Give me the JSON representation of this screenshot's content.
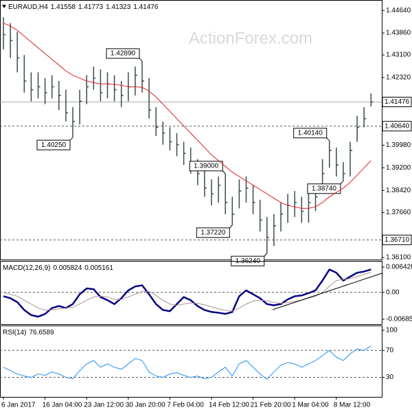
{
  "chart_data": [
    {
      "type": "ohlc",
      "title": "EURAUD,H4",
      "open": 1.41558,
      "categories": [
        "6 Jan 2017",
        null,
        null,
        null,
        null,
        null,
        "16 Jan 04:00",
        null,
        null,
        null,
        null,
        null,
        "23 Jan 12:00",
        null,
        null,
        null,
        null,
        null,
        "30 Jan 20:00",
        null,
        null,
        null,
        null,
        null,
        "7 Feb 04:00",
        null,
        null,
        null,
        null,
        null,
        "14 Feb 12:00",
        null,
        null,
        null,
        null,
        null,
        "21 Feb 20:00",
        null,
        null,
        null,
        null,
        null,
        "1 Mar 04:00",
        null,
        null,
        null,
        null,
        null,
        "8 Mar 12:00",
        null,
        null,
        null,
        null,
        null
      ],
      "high": [
        1.444,
        1.442,
        1.439,
        1.431,
        1.425,
        1.425,
        1.423,
        1.424,
        1.422,
        1.419,
        1.413,
        1.419,
        1.424,
        1.427,
        1.426,
        1.425,
        1.424,
        1.422,
        1.425,
        1.427,
        1.4289,
        1.423,
        1.413,
        1.408,
        1.406,
        1.404,
        1.401,
        1.399,
        1.395,
        1.391,
        1.388,
        1.389,
        1.39,
        1.382,
        1.388,
        1.389,
        1.386,
        1.381,
        1.375,
        1.376,
        1.38,
        1.383,
        1.384,
        1.382,
        1.384,
        1.386,
        1.395,
        1.4014,
        1.399,
        1.394,
        1.401,
        1.41,
        1.413,
        1.41773
      ],
      "low": [
        1.433,
        1.43,
        1.425,
        1.418,
        1.415,
        1.416,
        1.414,
        1.416,
        1.412,
        1.408,
        1.4025,
        1.407,
        1.414,
        1.419,
        1.415,
        1.416,
        1.415,
        1.413,
        1.415,
        1.417,
        1.418,
        1.409,
        1.403,
        1.4,
        1.398,
        1.396,
        1.393,
        1.39,
        1.386,
        1.382,
        1.379,
        1.38,
        1.376,
        1.3722,
        1.378,
        1.38,
        1.376,
        1.37,
        1.3624,
        1.365,
        1.37,
        1.373,
        1.375,
        1.373,
        1.373,
        1.377,
        1.384,
        1.392,
        1.389,
        1.3874,
        1.389,
        1.401,
        1.406,
        1.41323
      ],
      "close": [
        1.438,
        1.436,
        1.43,
        1.422,
        1.419,
        1.42,
        1.418,
        1.42,
        1.417,
        1.411,
        1.408,
        1.415,
        1.42,
        1.423,
        1.418,
        1.421,
        1.419,
        1.417,
        1.42,
        1.424,
        1.422,
        1.412,
        1.406,
        1.404,
        1.401,
        1.4,
        1.397,
        1.393,
        1.39,
        1.385,
        1.383,
        1.386,
        1.38,
        1.376,
        1.384,
        1.385,
        1.38,
        1.374,
        1.368,
        1.372,
        1.376,
        1.379,
        1.38,
        1.377,
        1.38,
        1.382,
        1.39,
        1.398,
        1.393,
        1.39,
        1.398,
        1.406,
        1.409,
        1.41476
      ],
      "bar_color": "#3a4a4a",
      "series": [
        {
          "color": "#e02020",
          "values": [
            1.442,
            1.441,
            1.4395,
            1.4375,
            1.4355,
            1.4335,
            1.4315,
            1.4295,
            1.4275,
            1.4255,
            1.424,
            1.423,
            1.422,
            1.4215,
            1.421,
            1.421,
            1.4208,
            1.4205,
            1.42,
            1.42,
            1.4198,
            1.4185,
            1.4165,
            1.414,
            1.4115,
            1.409,
            1.4065,
            1.404,
            1.4015,
            1.399,
            1.3965,
            1.3945,
            1.3925,
            1.3905,
            1.389,
            1.3875,
            1.386,
            1.3845,
            1.383,
            1.3815,
            1.38,
            1.379,
            1.3785,
            1.378,
            1.378,
            1.3785,
            1.38,
            1.382,
            1.3835,
            1.385,
            1.387,
            1.3895,
            1.392,
            1.3945
          ]
        }
      ],
      "ylim": [
        1.3603,
        1.45
      ],
      "yticks": [
        {
          "value": 1.4464,
          "label": "1.44640"
        },
        {
          "value": 1.4386,
          "label": "1.43860"
        },
        {
          "value": 1.431,
          "label": "1.43100"
        },
        {
          "value": 1.4232,
          "label": "1.42320"
        },
        {
          "value": 1.3998,
          "label": "1.39980"
        },
        {
          "value": 1.392,
          "label": "1.39200"
        },
        {
          "value": 1.3842,
          "label": "1.38420"
        },
        {
          "value": 1.3766,
          "label": "1.37660"
        },
        {
          "value": 1.361,
          "label": "1.36100"
        }
      ],
      "levels": [
        {
          "value": 1.4064,
          "label": "1.40640"
        },
        {
          "value": 1.3671,
          "label": "1.36710"
        }
      ],
      "annotations": [
        {
          "value": 1.4289,
          "label": "1.42890"
        },
        {
          "value": 1.4025,
          "label": "1.40250"
        },
        {
          "value": 1.39,
          "label": "1.39000"
        },
        {
          "value": 1.3722,
          "label": "1.37220"
        },
        {
          "value": 1.3624,
          "label": "1.36240"
        },
        {
          "value": 1.4014,
          "label": "1.40140"
        },
        {
          "value": 1.3874,
          "label": "1.38740"
        }
      ],
      "watermark": "ActionForex.com"
    },
    {
      "type": "line",
      "title": "MACD(12,26,9)",
      "series": [
        {
          "color": "#000080",
          "width": 2.5,
          "values": [
            -0.001,
            -0.0015,
            -0.0025,
            -0.0045,
            -0.0058,
            -0.0062,
            -0.0055,
            -0.004,
            -0.0035,
            -0.004,
            -0.003,
            -0.0005,
            0.001,
            0.0008,
            -0.0012,
            -0.002,
            -0.003,
            -0.0015,
            0.0005,
            0.0015,
            0.0018,
            -0.0005,
            -0.003,
            -0.0045,
            -0.0048,
            -0.003,
            -0.0012,
            -0.002,
            -0.0035,
            -0.0045,
            -0.005,
            -0.0052,
            -0.0055,
            -0.005,
            -0.001,
            0.0005,
            -0.0005,
            -0.0015,
            -0.003,
            -0.0033,
            -0.003,
            -0.0018,
            -0.001,
            -0.0008,
            -0.0002,
            0.0005,
            0.003,
            0.0058,
            0.005,
            0.003,
            0.004,
            0.005,
            0.0053,
            0.005824
          ]
        },
        {
          "color": "#b09090",
          "width": 1,
          "values": [
            0,
            -0.0005,
            -0.001,
            -0.002,
            -0.003,
            -0.004,
            -0.0045,
            -0.0045,
            -0.0042,
            -0.004,
            -0.0038,
            -0.003,
            -0.002,
            -0.0012,
            -0.001,
            -0.0012,
            -0.0018,
            -0.0018,
            -0.0012,
            -0.0005,
            0.0002,
            0.0002,
            -0.0008,
            -0.002,
            -0.003,
            -0.0033,
            -0.003,
            -0.0027,
            -0.0028,
            -0.0032,
            -0.0037,
            -0.0042,
            -0.0046,
            -0.0048,
            -0.004,
            -0.003,
            -0.0022,
            -0.002,
            -0.0022,
            -0.0026,
            -0.0028,
            -0.0026,
            -0.0023,
            -0.002,
            -0.0015,
            -0.001,
            0,
            0.0015,
            0.003,
            0.0033,
            0.0035,
            0.004,
            0.0046,
            0.005161
          ]
        }
      ],
      "ylim": [
        -0.0081,
        0.008
      ],
      "yticks": [
        0.006428,
        {
          "value": 0,
          "label": "0.00"
        },
        -0.006851
      ],
      "levels": [
        0
      ]
    },
    {
      "type": "line",
      "title": "RSI(14)",
      "series": [
        {
          "color": "#1e90ff",
          "width": 1,
          "values": [
            45,
            40,
            35,
            32,
            30,
            35,
            33,
            38,
            35,
            30,
            28,
            40,
            50,
            55,
            45,
            50,
            45,
            42,
            50,
            58,
            55,
            38,
            32,
            30,
            35,
            37,
            33,
            30,
            32,
            28,
            30,
            38,
            45,
            32,
            50,
            55,
            45,
            35,
            27,
            38,
            48,
            52,
            50,
            45,
            50,
            55,
            62,
            70,
            60,
            55,
            65,
            72,
            70,
            76.6589
          ]
        }
      ],
      "ylim": [
        1,
        107
      ],
      "yticks": [
        100,
        70,
        30
      ],
      "levels": [
        70,
        30
      ]
    }
  ]
}
